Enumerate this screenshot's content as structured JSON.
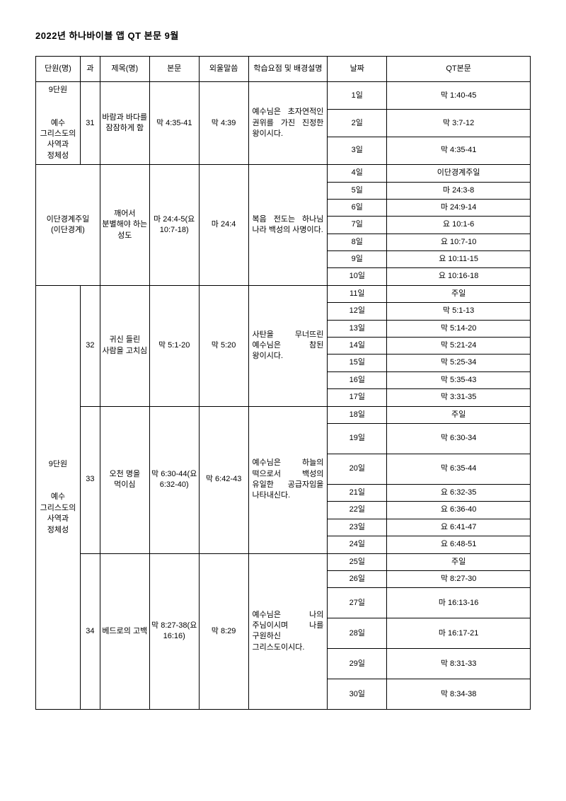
{
  "title": "2022년 하나바이블 앱 QT 본문 9월",
  "headers": {
    "unit": "단원(명)",
    "lesson": "과",
    "topic": "제목(명)",
    "text": "본문",
    "memorize": "외울말씀",
    "desc": "학습요점 및 배경설명",
    "date": "날짜",
    "qt": "QT본문"
  },
  "g1": {
    "unit": "9단원\n\n예수 그리스도의 사역과 정체성",
    "lesson": "31",
    "topic": "바람과 바다를 잠잠하게 함",
    "text": "막 4:35-41",
    "memorize": "막 4:39",
    "desc": "예수님은 초자연적인 권위를 가진 진정한 왕이시다.",
    "rows": [
      {
        "date": "1일",
        "qt": "막 1:40-45"
      },
      {
        "date": "2일",
        "qt": "막 3:7-12"
      },
      {
        "date": "3일",
        "qt": "막 4:35-41"
      }
    ]
  },
  "g2": {
    "unit": "이단경계주일\n(이단경계)",
    "lesson": "",
    "topic": "깨어서 분별해야 하는 성도",
    "text": "마 24:4-5(요 10:7-18)",
    "memorize": "마 24:4",
    "desc": "복음 전도는 하나님 나라 백성의 사명이다.",
    "rows": [
      {
        "date": "4일",
        "qt": "이단경계주일"
      },
      {
        "date": "5일",
        "qt": "마 24:3-8"
      },
      {
        "date": "6일",
        "qt": "마 24:9-14"
      },
      {
        "date": "7일",
        "qt": "요 10:1-6"
      },
      {
        "date": "8일",
        "qt": "요 10:7-10"
      },
      {
        "date": "9일",
        "qt": "요 10:11-15"
      },
      {
        "date": "10일",
        "qt": "요 10:16-18"
      }
    ]
  },
  "g3": {
    "bigunit": "9단원\n\n예수 그리스도의 사역과 정체성",
    "a": {
      "lesson": "32",
      "topic": "귀신 들린 사람을 고치심",
      "text": "막 5:1-20",
      "memorize": "막 5:20",
      "desc": "사탄을 무너뜨린 예수님은 참된 왕이시다.",
      "rows": [
        {
          "date": "11일",
          "qt": "주일"
        },
        {
          "date": "12일",
          "qt": "막 5:1-13"
        },
        {
          "date": "13일",
          "qt": "막 5:14-20"
        },
        {
          "date": "14일",
          "qt": "막 5:21-24"
        },
        {
          "date": "15일",
          "qt": "막 5:25-34"
        },
        {
          "date": "16일",
          "qt": "막 5:35-43"
        },
        {
          "date": "17일",
          "qt": "막 3:31-35"
        }
      ]
    },
    "b": {
      "lesson": "33",
      "topic": "오천 명을 먹이심",
      "text": "막 6:30-44(요 6:32-40)",
      "memorize": "막 6:42-43",
      "desc": "예수님은 하늘의 떡으로서 백성의 유일한 공급자임을 나타내신다.",
      "rows": [
        {
          "date": "18일",
          "qt": "주일"
        },
        {
          "date": "19일",
          "qt": "막 6:30-34"
        },
        {
          "date": "20일",
          "qt": "막 6:35-44"
        },
        {
          "date": "21일",
          "qt": "요 6:32-35"
        },
        {
          "date": "22일",
          "qt": "요 6:36-40"
        },
        {
          "date": "23일",
          "qt": "요 6:41-47"
        },
        {
          "date": "24일",
          "qt": "요 6:48-51"
        }
      ]
    },
    "c": {
      "lesson": "34",
      "topic": "베드로의 고백",
      "text": "막 8:27-38(요 16:16)",
      "memorize": "막 8:29",
      "desc": "예수님은 나의 주님이시며 나를 구원하신 그리스도이시다.",
      "rows": [
        {
          "date": "25일",
          "qt": "주일"
        },
        {
          "date": "26일",
          "qt": "막 8:27-30"
        },
        {
          "date": "27일",
          "qt": "마 16:13-16"
        },
        {
          "date": "28일",
          "qt": "마 16:17-21"
        },
        {
          "date": "29일",
          "qt": "막 8:31-33"
        },
        {
          "date": "30일",
          "qt": "막 8:34-38"
        }
      ]
    }
  }
}
